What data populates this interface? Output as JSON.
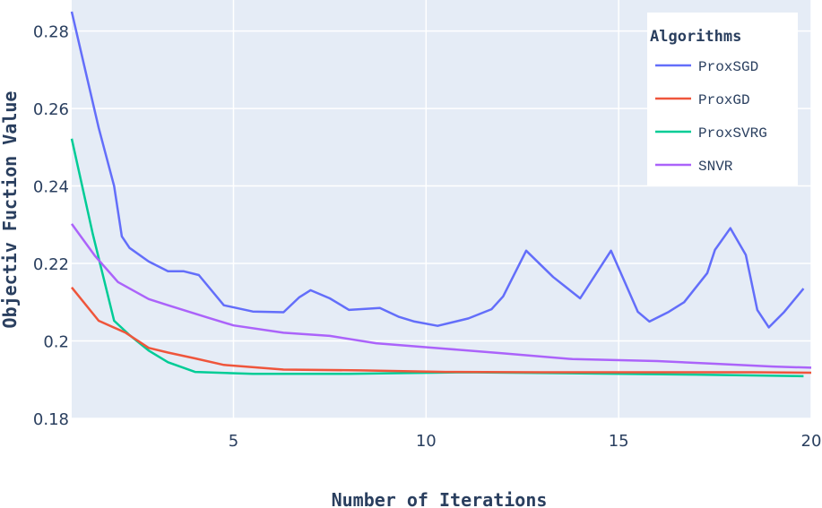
{
  "chart_data": {
    "type": "line",
    "xlabel": "Number of Iterations",
    "ylabel": "Objectiv Fuction Value",
    "xlim": [
      0.8,
      20
    ],
    "ylim": [
      0.18,
      0.288
    ],
    "x_ticks": [
      5,
      10,
      15,
      20
    ],
    "x_tick_labels": [
      "5",
      "10",
      "15",
      "20"
    ],
    "y_ticks": [
      0.18,
      0.2,
      0.22,
      0.24,
      0.26,
      0.28
    ],
    "y_tick_labels": [
      "0.18",
      "0.2",
      "0.22",
      "0.24",
      "0.26",
      "0.28"
    ],
    "grid": true,
    "legend": {
      "title": "Algorithms",
      "position": "top-right"
    },
    "background": "#e5ecf6",
    "series": [
      {
        "name": "ProxSGD",
        "color": "#636efa",
        "x": [
          0.8,
          1.15,
          1.5,
          1.9,
          2.1,
          2.3,
          2.8,
          3.3,
          3.7,
          4.1,
          4.75,
          5.5,
          6.3,
          6.7,
          7,
          7.5,
          8,
          8.8,
          9.3,
          9.7,
          10.3,
          11.1,
          11.7,
          12,
          12.6,
          13.3,
          14,
          14.8,
          15.5,
          15.8,
          16.3,
          16.7,
          17.3,
          17.5,
          17.9,
          18.3,
          18.6,
          18.9,
          19.3,
          19.8
        ],
        "y": [
          0.285,
          0.27,
          0.255,
          0.24,
          0.227,
          0.224,
          0.2205,
          0.218,
          0.218,
          0.217,
          0.2092,
          0.2076,
          0.2074,
          0.2112,
          0.2131,
          0.211,
          0.208,
          0.2085,
          0.2062,
          0.205,
          0.2039,
          0.2058,
          0.2082,
          0.2115,
          0.2233,
          0.2165,
          0.211,
          0.2233,
          0.2075,
          0.205,
          0.2075,
          0.21,
          0.2175,
          0.2235,
          0.2291,
          0.2222,
          0.208,
          0.2035,
          0.2075,
          0.2135
        ]
      },
      {
        "name": "ProxGD",
        "color": "#ef553b",
        "x": [
          0.8,
          1.5,
          2.2,
          2.8,
          3.3,
          4,
          4.75,
          6.3,
          8.3,
          10.5,
          13,
          16,
          18.5,
          20
        ],
        "y": [
          0.2138,
          0.2052,
          0.2021,
          0.1982,
          0.197,
          0.1955,
          0.1938,
          0.1926,
          0.1924,
          0.192,
          0.1919,
          0.1919,
          0.1919,
          0.1918
        ]
      },
      {
        "name": "ProxSVRG",
        "color": "#00cc96",
        "x": [
          0.8,
          1.35,
          1.9,
          2.3,
          2.8,
          3.3,
          4,
          5.5,
          8,
          11,
          14,
          17,
          19.8
        ],
        "y": [
          0.2522,
          0.2275,
          0.2052,
          0.2015,
          0.1975,
          0.1945,
          0.192,
          0.1915,
          0.1915,
          0.1919,
          0.1916,
          0.1913,
          0.1909
        ]
      },
      {
        "name": "SNVR",
        "color": "#ab63fa",
        "x": [
          0.8,
          1.4,
          2,
          2.8,
          3.3,
          4.3,
          5,
          6.3,
          7.5,
          8.7,
          10.5,
          12,
          13.8,
          16,
          17.5,
          19,
          20
        ],
        "y": [
          0.2302,
          0.222,
          0.2152,
          0.2108,
          0.2092,
          0.2061,
          0.204,
          0.2021,
          0.2013,
          0.1994,
          0.198,
          0.1968,
          0.1953,
          0.1948,
          0.1941,
          0.1934,
          0.1931
        ]
      }
    ]
  }
}
